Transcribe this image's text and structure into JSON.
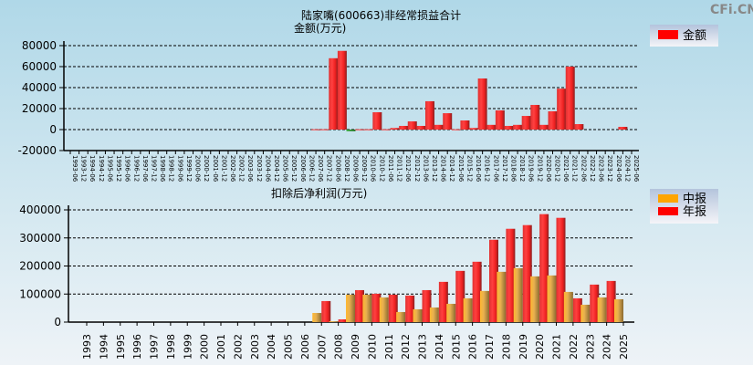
{
  "watermark": "CFi.CN",
  "chart_data": [
    {
      "type": "bar",
      "title": "陆家嘴(600663)非经常损益合计",
      "ylabel": "金额(万元)",
      "ylim": [
        -20000,
        80000
      ],
      "yticks": [
        80000,
        60000,
        40000,
        20000,
        0,
        -20000
      ],
      "grid": true,
      "legend": {
        "placement": "top-right",
        "entries": [
          {
            "name": "金额",
            "color": "#ff0000"
          }
        ]
      },
      "categories": [
        "1993-06",
        "1993-12",
        "1994-06",
        "1994-12",
        "1995-06",
        "1995-12",
        "1996-06",
        "1996-12",
        "1997-06",
        "1997-12",
        "1998-06",
        "1998-12",
        "1999-06",
        "1999-12",
        "2000-06",
        "2000-12",
        "2001-06",
        "2001-12",
        "2002-06",
        "2002-12",
        "2003-06",
        "2003-12",
        "2004-06",
        "2004-12",
        "2005-06",
        "2005-12",
        "2006-06",
        "2006-12",
        "2007-06",
        "2007-12",
        "2008-06",
        "2008-12",
        "2009-06",
        "2009-12",
        "2010-06",
        "2010-12",
        "2011-06",
        "2011-12",
        "2012-06",
        "2012-12",
        "2013-06",
        "2013-12",
        "2014-06",
        "2014-12",
        "2015-06",
        "2015-12",
        "2016-06",
        "2016-12",
        "2017-06",
        "2017-12",
        "2018-06",
        "2018-12",
        "2019-06",
        "2019-12",
        "2020-06",
        "2020-12",
        "2021-06",
        "2021-12",
        "2022-06",
        "2022-12",
        "2023-06",
        "2023-12",
        "2024-06",
        "2024-12",
        "2025-06"
      ],
      "values": [
        null,
        null,
        null,
        null,
        null,
        null,
        null,
        null,
        null,
        null,
        null,
        null,
        null,
        null,
        null,
        null,
        null,
        null,
        null,
        null,
        null,
        null,
        null,
        null,
        null,
        null,
        null,
        null,
        300,
        300,
        68000,
        75000,
        -1500,
        300,
        300,
        16500,
        300,
        1500,
        3500,
        7800,
        3500,
        27000,
        4500,
        15600,
        300,
        8700,
        1500,
        48700,
        4500,
        18300,
        3500,
        4500,
        13000,
        23500,
        4500,
        17400,
        39000,
        60000,
        5200,
        null,
        null,
        null,
        null,
        2600,
        null
      ],
      "colors": {
        "positive": "#ff0000",
        "negative": "#2e8b2e"
      }
    },
    {
      "type": "bar",
      "title": "扣除后净利润(万元)",
      "ylim": [
        0,
        400000
      ],
      "yticks": [
        400000,
        300000,
        200000,
        100000,
        0
      ],
      "grid": true,
      "legend": {
        "placement": "top-right",
        "entries": [
          {
            "name": "中报",
            "color": "#ffa500"
          },
          {
            "name": "年报",
            "color": "#ff0000"
          }
        ]
      },
      "categories": [
        "1993",
        "1994",
        "1995",
        "1996",
        "1997",
        "1998",
        "1999",
        "2000",
        "2001",
        "2002",
        "2003",
        "2004",
        "2005",
        "2006",
        "2007",
        "2008",
        "2009",
        "2010",
        "2011",
        "2012",
        "2013",
        "2014",
        "2015",
        "2016",
        "2017",
        "2018",
        "2019",
        "2020",
        "2021",
        "2022",
        "2023",
        "2024",
        "2025"
      ],
      "series": [
        {
          "name": "中报",
          "values": [
            null,
            null,
            null,
            null,
            null,
            null,
            null,
            null,
            null,
            null,
            null,
            null,
            null,
            null,
            32600,
            3000,
            97800,
            97800,
            88000,
            35900,
            45700,
            52200,
            65200,
            84800,
            111000,
            179300,
            192400,
            163000,
            166300,
            107600,
            62000,
            88000,
            81500
          ]
        },
        {
          "name": "年报",
          "values": [
            null,
            null,
            null,
            null,
            null,
            null,
            null,
            null,
            null,
            null,
            null,
            null,
            null,
            null,
            75000,
            9800,
            114000,
            101000,
            97800,
            94600,
            114000,
            143500,
            182600,
            215200,
            293500,
            332600,
            345700,
            384800,
            371700,
            84800,
            133700,
            146700,
            null
          ]
        }
      ]
    }
  ]
}
